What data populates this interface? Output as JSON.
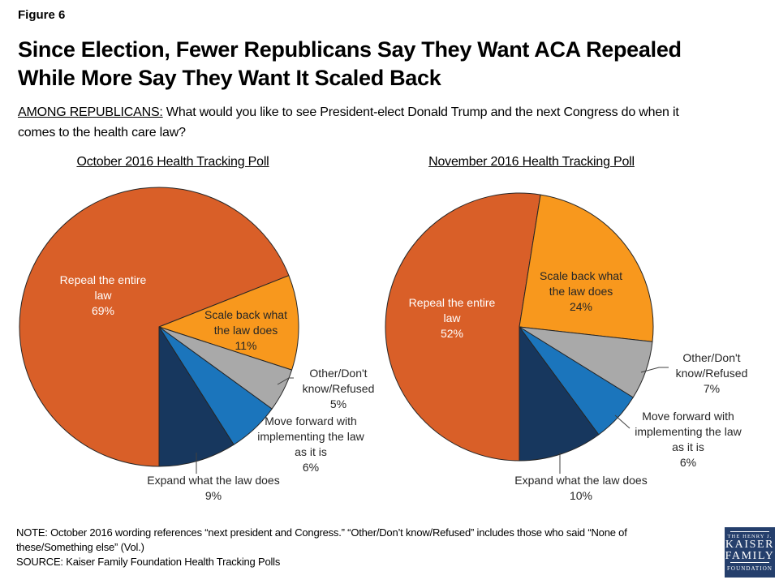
{
  "figure_label": "Figure 6",
  "title_lines": [
    "Since Election, Fewer Republicans Say They Want ACA Repealed",
    "While More Say They Want It Scaled Back"
  ],
  "subtitle": {
    "prefix": "AMONG REPUBLICANS:",
    "line1_rest": " What would you like to see President-elect Donald Trump and the next Congress do when it",
    "line2": "comes to the health care law?"
  },
  "chart_data": [
    {
      "type": "pie",
      "title": "October 2016 Health Tracking Poll",
      "labels": [
        "Repeal the entire law",
        "Scale back what the law does",
        "Other/Don't know/Refused",
        "Move forward with implementing the law as it is",
        "Expand what the law does"
      ],
      "values": [
        69,
        11,
        5,
        6,
        9
      ],
      "colors": [
        "#D95F28",
        "#F8981D",
        "#A9A9A9",
        "#1B75BC",
        "#17375E"
      ],
      "start_angle_deg": 180,
      "direction": "clockwise",
      "legend": "none, direct slice labels"
    },
    {
      "type": "pie",
      "title": "November 2016 Health Tracking Poll",
      "labels": [
        "Repeal the entire law",
        "Scale back what the law does",
        "Other/Don't know/Refused",
        "Move forward with implementing the law as it is",
        "Expand what the law does"
      ],
      "values": [
        52,
        24,
        7,
        6,
        10
      ],
      "colors": [
        "#D95F28",
        "#F8981D",
        "#A9A9A9",
        "#1B75BC",
        "#17375E"
      ],
      "start_angle_deg": 180,
      "direction": "clockwise",
      "legend": "none, direct slice labels"
    }
  ],
  "slice_labels": {
    "oct_repeal": "Repeal the entire\nlaw\n69%",
    "oct_scale": "Scale back what\nthe law does\n11%",
    "oct_other": "Other/Don't\nknow/Refused\n5%",
    "oct_move": "Move forward with\nimplementing the law\nas it is\n6%",
    "oct_expand": "Expand what the law does\n9%",
    "nov_repeal": "Repeal the entire\nlaw\n52%",
    "nov_scale": "Scale back what\nthe law does\n24%",
    "nov_other": "Other/Don't\nknow/Refused\n7%",
    "nov_move": "Move forward with\nimplementing the law\nas it is\n6%",
    "nov_expand": "Expand what the law does\n10%"
  },
  "note_lines": [
    "NOTE: October 2016 wording references “next president and Congress.” “Other/Don’t know/Refused” includes those who said “None of",
    "these/Something else” (Vol.)"
  ],
  "source_line": "SOURCE: Kaiser Family Foundation Health Tracking Polls",
  "logo": {
    "top": "THE HENRY J.",
    "name1": "KAISER",
    "name2": "FAMILY",
    "bottom": "FOUNDATION"
  },
  "colors": {
    "repeal": "#D95F28",
    "scale_back": "#F8981D",
    "other_dont_know": "#A9A9A9",
    "move_forward": "#1B75BC",
    "expand": "#17375E",
    "slice_outline": "#262626",
    "logo_background": "#253F6C"
  }
}
